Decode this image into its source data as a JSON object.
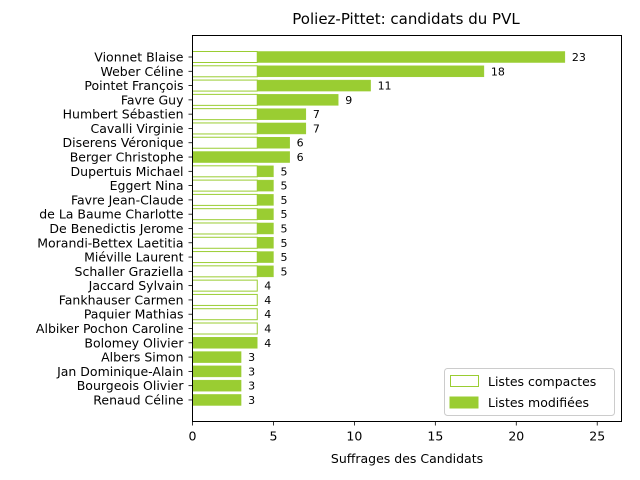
{
  "chart_data": {
    "type": "bar",
    "orientation": "horizontal",
    "title": "Poliez-Pittet: candidats du PVL",
    "xlabel": "Suffrages des Candidats",
    "ylabel": "",
    "xlim": [
      0,
      26.5
    ],
    "xticks": [
      0,
      5,
      10,
      15,
      20,
      25
    ],
    "grid": false,
    "legend_position": "bottom-right",
    "colors": {
      "bar": "#9acd32",
      "edge": "#9acd32",
      "axis": "#000000"
    },
    "categories": [
      "Vionnet Blaise",
      "Weber Céline",
      "Pointet François",
      "Favre Guy",
      "Humbert Sébastien",
      "Cavalli Virginie",
      "Diserens Véronique",
      "Berger Christophe",
      "Dupertuis Michael",
      "Eggert Nina",
      "Favre Jean-Claude",
      "de La Baume Charlotte",
      "De Benedictis Jerome",
      "Morandi-Bettex Laetitia",
      "Miéville Laurent",
      "Schaller Graziella",
      "Jaccard Sylvain",
      "Fankhauser Carmen",
      "Paquier Mathias",
      "Albiker Pochon Caroline",
      "Bolomey Olivier",
      "Albers Simon",
      "Jan Dominique-Alain",
      "Bourgeois Olivier",
      "Renaud Céline"
    ],
    "series": [
      {
        "name": "Listes compactes",
        "style": "outline",
        "values": [
          4,
          4,
          4,
          4,
          4,
          4,
          4,
          0,
          4,
          4,
          4,
          4,
          4,
          4,
          4,
          4,
          4,
          4,
          4,
          4,
          0,
          0,
          0,
          0,
          0
        ]
      },
      {
        "name": "Listes modifiées",
        "style": "filled",
        "values": [
          19,
          14,
          7,
          5,
          3,
          3,
          2,
          6,
          1,
          1,
          1,
          1,
          1,
          1,
          1,
          1,
          0,
          0,
          0,
          0,
          4,
          3,
          3,
          3,
          3
        ]
      }
    ],
    "totals": [
      23,
      18,
      11,
      9,
      7,
      7,
      6,
      6,
      5,
      5,
      5,
      5,
      5,
      5,
      5,
      5,
      4,
      4,
      4,
      4,
      4,
      3,
      3,
      3,
      3
    ]
  }
}
